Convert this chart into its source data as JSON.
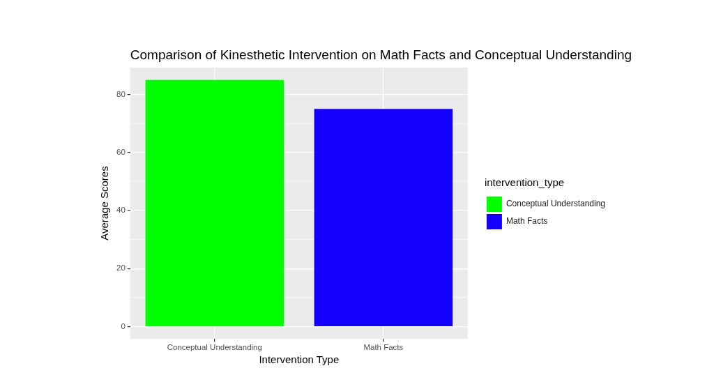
{
  "chart_data": {
    "type": "bar",
    "title": "Comparison of Kinesthetic Intervention on Math Facts and Conceptual Understanding",
    "xlabel": "Intervention Type",
    "ylabel": "Average Scores",
    "legend_title": "intervention_type",
    "legend": "right",
    "stacked": true,
    "categories": [
      "Conceptual Understanding",
      "Math Facts"
    ],
    "series": [
      {
        "name": "Conceptual Understanding",
        "color": "#00ff00",
        "values": [
          85,
          null
        ]
      },
      {
        "name": "Math Facts",
        "color": "#1400ff",
        "values": [
          null,
          75
        ]
      }
    ],
    "ylim": [
      -4.25,
      89.25
    ],
    "yticks": [
      0,
      {
        "value": 10,
        "label": null
      },
      20,
      {
        "value": 30,
        "label": null
      },
      40,
      {
        "value": 50,
        "label": null
      },
      60,
      {
        "value": 70,
        "label": null
      },
      80
    ],
    "grid": true
  }
}
